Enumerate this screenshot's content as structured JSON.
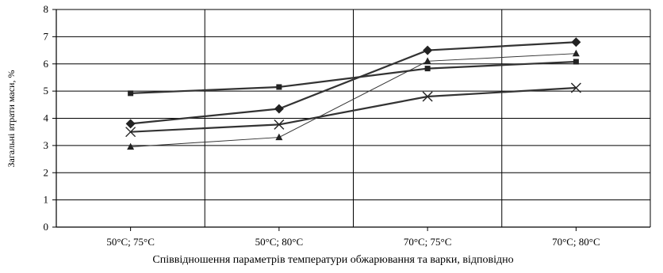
{
  "chart_data": {
    "type": "line",
    "title": "",
    "xlabel": "Співвідношення параметрів температури обжарювання та варки, відповідно",
    "ylabel": "Загальні втрати маси, %",
    "categories": [
      "50°C; 75°C",
      "50°C; 80°C",
      "70°C; 75°C",
      "70°C; 80°C"
    ],
    "ylim": [
      0,
      8
    ],
    "yticks": [
      "0",
      "1",
      "2",
      "3",
      "4",
      "5",
      "6",
      "7",
      "8"
    ],
    "grid": "both",
    "legend": "none",
    "series": [
      {
        "marker": "diamond",
        "stroke": "#333333",
        "width": 2.2,
        "values": [
          3.8,
          4.35,
          6.5,
          6.8
        ]
      },
      {
        "marker": "square",
        "stroke": "#333333",
        "width": 2.2,
        "values": [
          4.92,
          5.15,
          5.83,
          6.08
        ]
      },
      {
        "marker": "triangle",
        "stroke": "#333333",
        "width": 1.0,
        "values": [
          2.95,
          3.3,
          6.1,
          6.38
        ]
      },
      {
        "marker": "cross",
        "stroke": "#333333",
        "width": 2.2,
        "values": [
          3.5,
          3.77,
          4.8,
          5.12
        ]
      }
    ]
  }
}
